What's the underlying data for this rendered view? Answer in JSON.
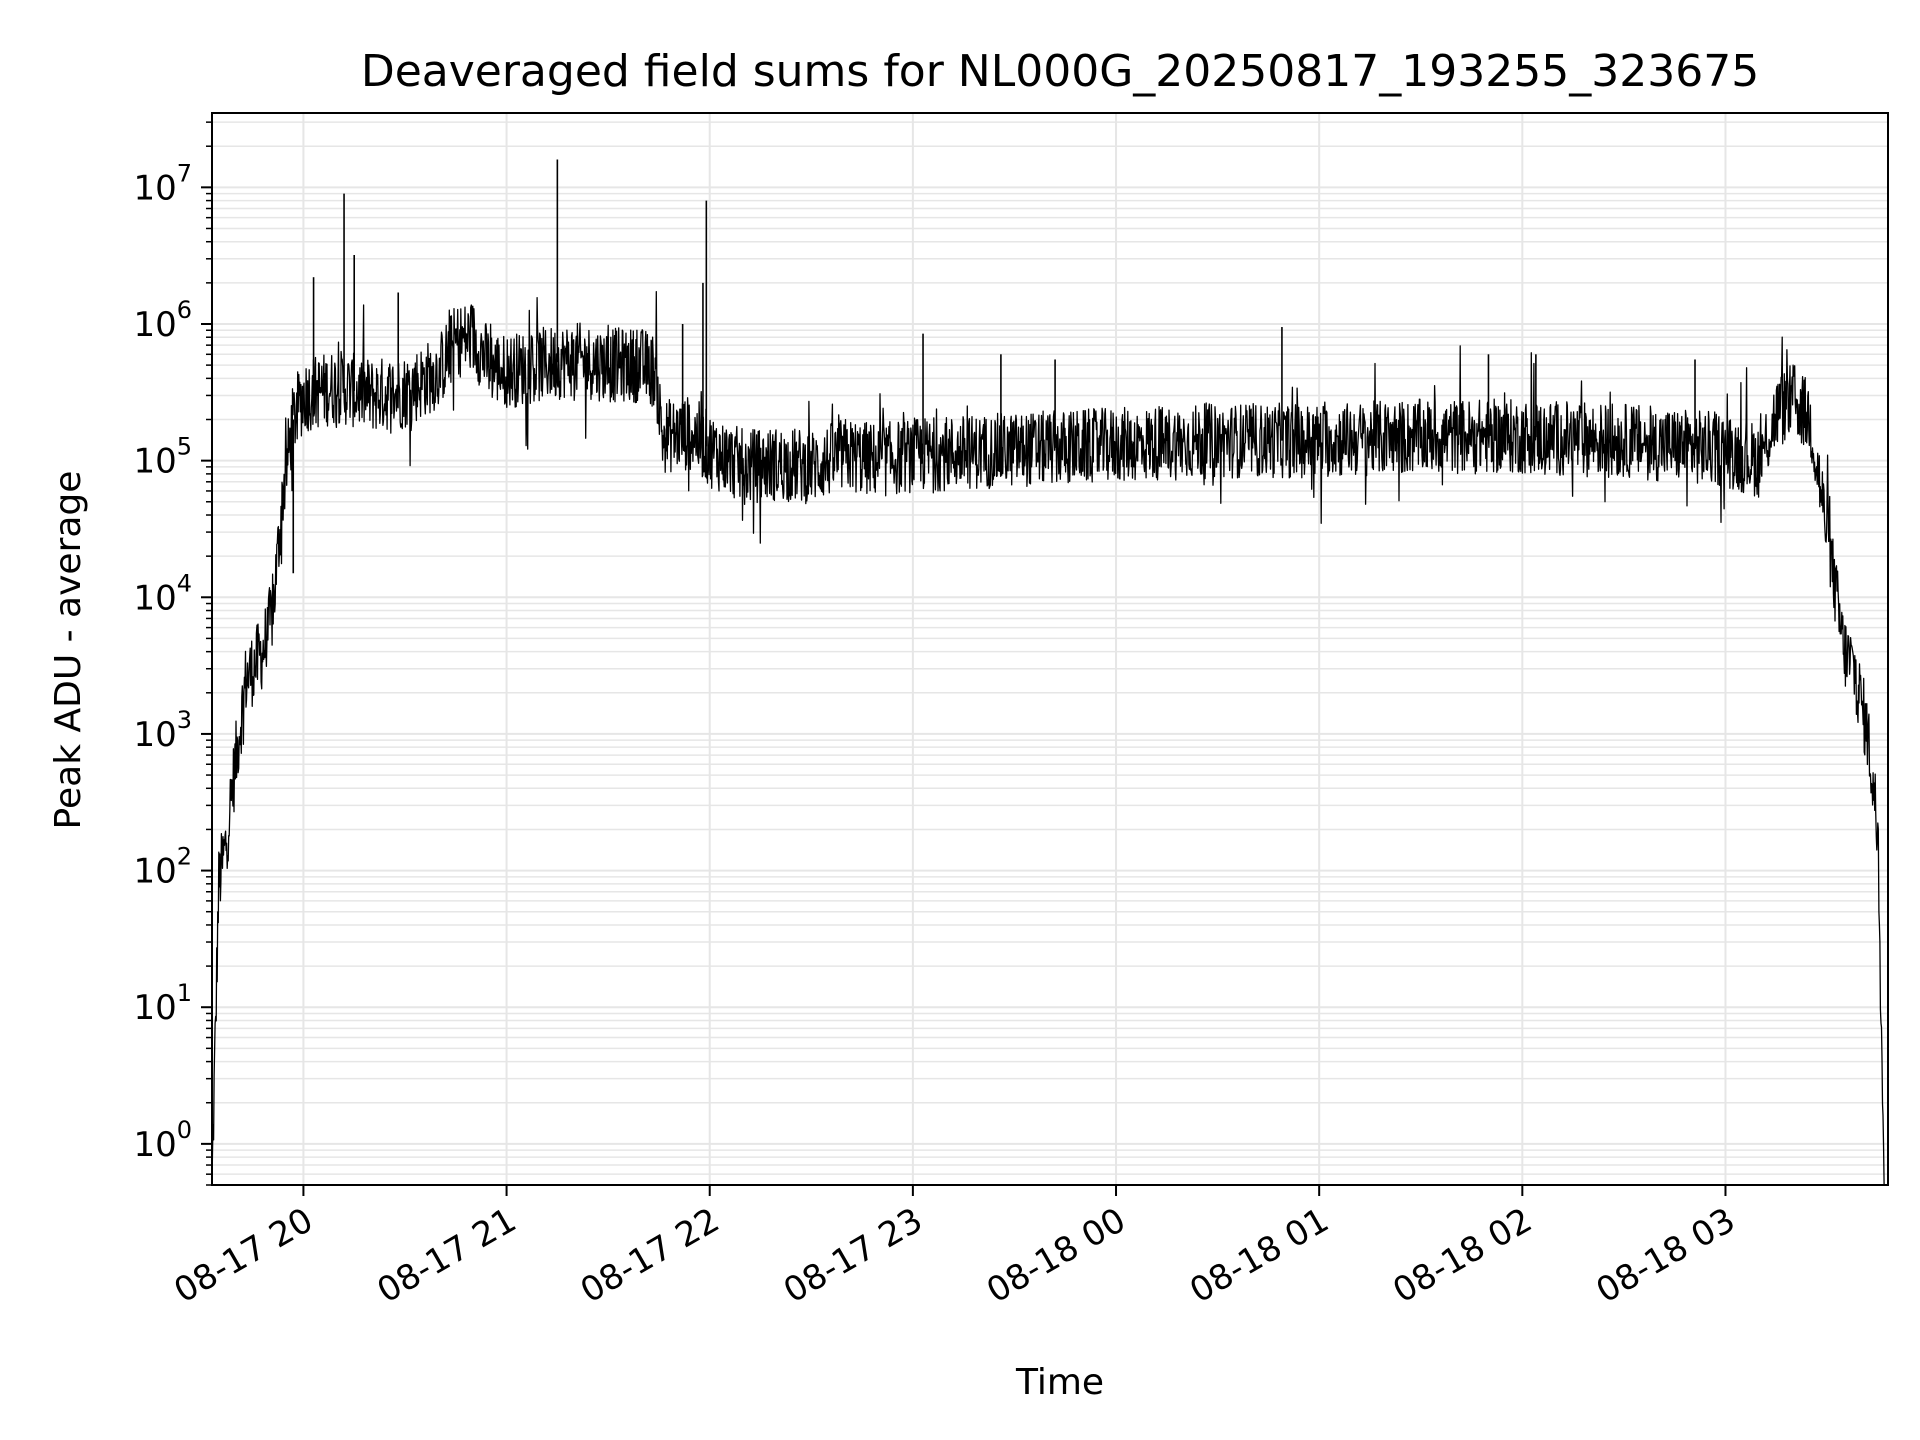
{
  "chart_data": {
    "type": "line",
    "title": "Deaveraged field sums for NL000G_20250817_193255_323675",
    "xlabel": "Time",
    "ylabel": "Peak ADU - average",
    "y_scale": "log",
    "ylim": [
      0.5,
      35000000
    ],
    "xlim": [
      "2025-08-17 19:33",
      "2025-08-18 03:48"
    ],
    "grid": true,
    "line_color": "#000000",
    "grid_color": "#e6e6e6",
    "x_ticks": [
      {
        "label": "08-17 20",
        "t": "2025-08-17 20:00"
      },
      {
        "label": "08-17 21",
        "t": "2025-08-17 21:00"
      },
      {
        "label": "08-17 22",
        "t": "2025-08-17 22:00"
      },
      {
        "label": "08-17 23",
        "t": "2025-08-17 23:00"
      },
      {
        "label": "08-18 00",
        "t": "2025-08-18 00:00"
      },
      {
        "label": "08-18 01",
        "t": "2025-08-18 01:00"
      },
      {
        "label": "08-18 02",
        "t": "2025-08-18 02:00"
      },
      {
        "label": "08-18 03",
        "t": "2025-08-18 03:00"
      }
    ],
    "y_ticks": [
      {
        "base": "10",
        "exp": "0",
        "value": 1
      },
      {
        "base": "10",
        "exp": "1",
        "value": 10
      },
      {
        "base": "10",
        "exp": "2",
        "value": 100
      },
      {
        "base": "10",
        "exp": "3",
        "value": 1000
      },
      {
        "base": "10",
        "exp": "4",
        "value": 10000
      },
      {
        "base": "10",
        "exp": "5",
        "value": 100000
      },
      {
        "base": "10",
        "exp": "6",
        "value": 1000000
      },
      {
        "base": "10",
        "exp": "7",
        "value": 10000000
      }
    ],
    "series": [
      {
        "points": [
          [
            "2025-08-17 19:33",
            0.5
          ],
          [
            "2025-08-17 19:35",
            80
          ],
          [
            "2025-08-17 19:37",
            150
          ],
          [
            "2025-08-17 19:39",
            400
          ],
          [
            "2025-08-17 19:41",
            1000
          ],
          [
            "2025-08-17 19:43",
            2500
          ],
          [
            "2025-08-17 19:45",
            3000
          ],
          [
            "2025-08-17 19:48",
            4000
          ],
          [
            "2025-08-17 19:51",
            8000
          ],
          [
            "2025-08-17 19:54",
            60000
          ],
          [
            "2025-08-17 19:57",
            200000
          ],
          [
            "2025-08-17 20:00",
            300000
          ],
          [
            "2025-08-17 20:10",
            350000
          ],
          [
            "2025-08-17 20:20",
            300000
          ],
          [
            "2025-08-17 20:30",
            320000
          ],
          [
            "2025-08-17 20:40",
            450000
          ],
          [
            "2025-08-17 20:45",
            750000
          ],
          [
            "2025-08-17 20:50",
            800000
          ],
          [
            "2025-08-17 20:55",
            500000
          ],
          [
            "2025-08-17 21:00",
            450000
          ],
          [
            "2025-08-17 21:10",
            500000
          ],
          [
            "2025-08-17 21:20",
            550000
          ],
          [
            "2025-08-17 21:30",
            500000
          ],
          [
            "2025-08-17 21:40",
            500000
          ],
          [
            "2025-08-17 21:44",
            450000
          ],
          [
            "2025-08-17 21:46",
            150000
          ],
          [
            "2025-08-17 21:55",
            160000
          ],
          [
            "2025-08-17 22:00",
            120000
          ],
          [
            "2025-08-17 22:10",
            90000
          ],
          [
            "2025-08-17 22:20",
            95000
          ],
          [
            "2025-08-17 22:30",
            90000
          ],
          [
            "2025-08-17 22:40",
            110000
          ],
          [
            "2025-08-17 22:50",
            100000
          ],
          [
            "2025-08-17 23:00",
            110000
          ],
          [
            "2025-08-17 23:30",
            120000
          ],
          [
            "2025-08-18 00:00",
            130000
          ],
          [
            "2025-08-18 00:30",
            140000
          ],
          [
            "2025-08-18 01:00",
            140000
          ],
          [
            "2025-08-18 01:30",
            150000
          ],
          [
            "2025-08-18 02:00",
            150000
          ],
          [
            "2025-08-18 02:30",
            140000
          ],
          [
            "2025-08-18 03:00",
            120000
          ],
          [
            "2025-08-18 03:10",
            100000
          ],
          [
            "2025-08-18 03:15",
            220000
          ],
          [
            "2025-08-18 03:20",
            280000
          ],
          [
            "2025-08-18 03:25",
            200000
          ],
          [
            "2025-08-18 03:30",
            30000
          ],
          [
            "2025-08-18 03:35",
            4000
          ],
          [
            "2025-08-18 03:38",
            3000
          ],
          [
            "2025-08-18 03:42",
            1000
          ],
          [
            "2025-08-18 03:45",
            200
          ],
          [
            "2025-08-18 03:47",
            0.5
          ]
        ],
        "spikes": [
          [
            "2025-08-17 19:57",
            15000
          ],
          [
            "2025-08-17 20:03",
            2200000
          ],
          [
            "2025-08-17 20:12",
            9000000
          ],
          [
            "2025-08-17 20:15",
            3200000
          ],
          [
            "2025-08-17 20:28",
            1700000
          ],
          [
            "2025-08-17 21:15",
            16000000
          ],
          [
            "2025-08-17 21:52",
            1000000
          ],
          [
            "2025-08-17 21:58",
            2000000
          ],
          [
            "2025-08-17 21:59",
            8000000
          ],
          [
            "2025-08-17 23:03",
            850000
          ],
          [
            "2025-08-17 23:26",
            600000
          ],
          [
            "2025-08-17 23:42",
            550000
          ],
          [
            "2025-08-18 00:49",
            950000
          ],
          [
            "2025-08-18 01:50",
            600000
          ],
          [
            "2025-08-18 02:04",
            600000
          ],
          [
            "2025-08-18 02:51",
            550000
          ]
        ]
      }
    ]
  }
}
